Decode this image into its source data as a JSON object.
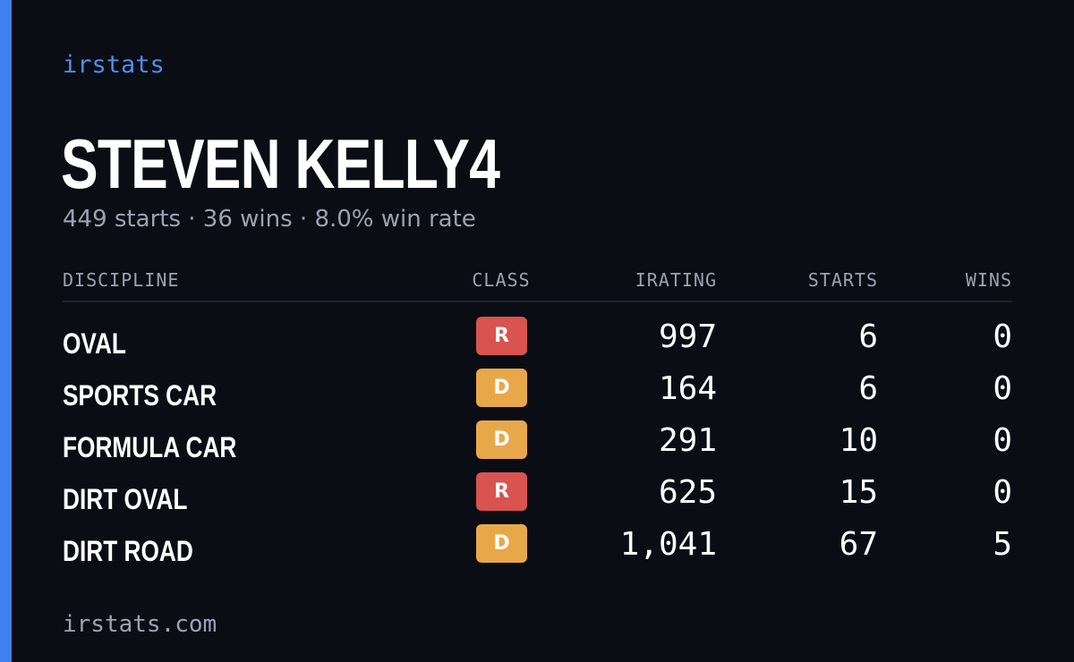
{
  "brand": "irstats",
  "driver": {
    "name": "STEVEN KELLY4",
    "summary": "449 starts · 36 wins · 8.0% win rate"
  },
  "colors": {
    "accent": "#3d82f0",
    "class_R": "#d9534f",
    "class_D": "#e8a84a",
    "background": "#0b0d14"
  },
  "table": {
    "headers": {
      "discipline": "DISCIPLINE",
      "class": "CLASS",
      "irating": "IRATING",
      "starts": "STARTS",
      "wins": "WINS"
    },
    "rows": [
      {
        "discipline": "OVAL",
        "class": "R",
        "irating": "997",
        "starts": "6",
        "wins": "0"
      },
      {
        "discipline": "SPORTS CAR",
        "class": "D",
        "irating": "164",
        "starts": "6",
        "wins": "0"
      },
      {
        "discipline": "FORMULA CAR",
        "class": "D",
        "irating": "291",
        "starts": "10",
        "wins": "0"
      },
      {
        "discipline": "DIRT OVAL",
        "class": "R",
        "irating": "625",
        "starts": "15",
        "wins": "0"
      },
      {
        "discipline": "DIRT ROAD",
        "class": "D",
        "irating": "1,041",
        "starts": "67",
        "wins": "5"
      }
    ]
  },
  "footer": "irstats.com"
}
